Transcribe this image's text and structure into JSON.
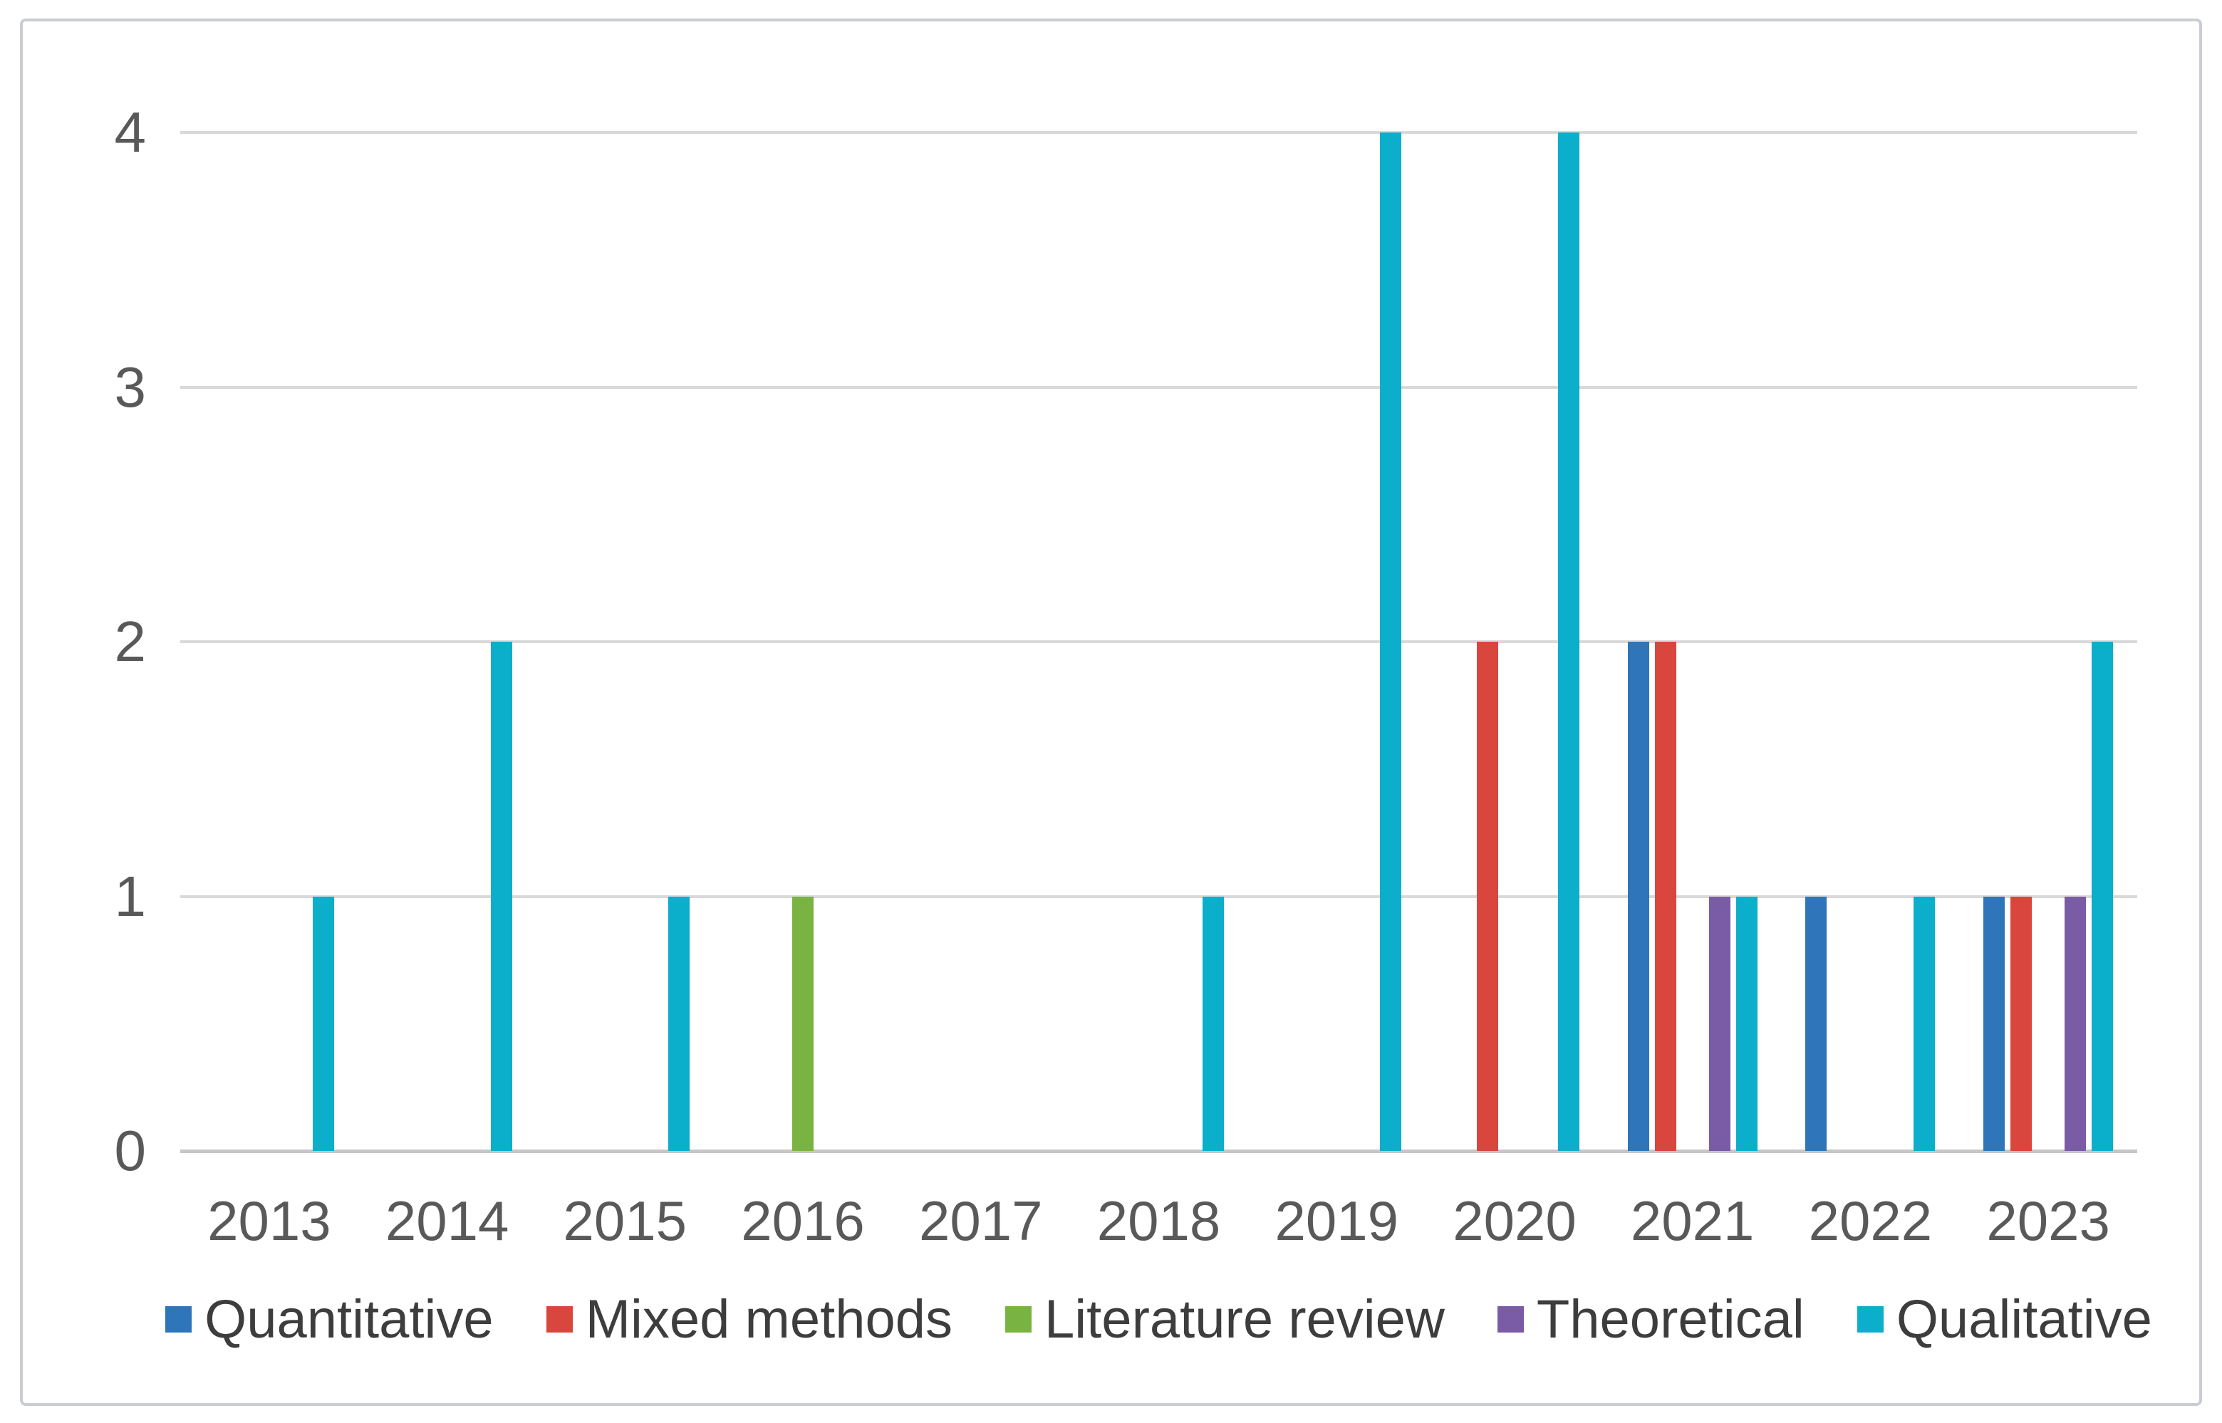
{
  "figure": {
    "background_color": "#ffffff",
    "border_color": "#c9cdd2"
  },
  "chart_data": {
    "type": "bar",
    "title": "",
    "xlabel": "",
    "ylabel": "",
    "categories": [
      "2013",
      "2014",
      "2015",
      "2016",
      "2017",
      "2018",
      "2019",
      "2020",
      "2021",
      "2022",
      "2023"
    ],
    "series": [
      {
        "name": "Quantitative",
        "color": "#2e76b9",
        "values": [
          0,
          0,
          0,
          0,
          0,
          0,
          0,
          0,
          2,
          1,
          1
        ]
      },
      {
        "name": "Mixed methods",
        "color": "#d9463e",
        "values": [
          0,
          0,
          0,
          0,
          0,
          0,
          0,
          2,
          2,
          0,
          1
        ]
      },
      {
        "name": "Literature review",
        "color": "#79b442",
        "values": [
          0,
          0,
          0,
          1,
          0,
          0,
          0,
          0,
          0,
          0,
          0
        ]
      },
      {
        "name": "Theoretical",
        "color": "#7a5ba5",
        "values": [
          0,
          0,
          0,
          0,
          0,
          0,
          0,
          0,
          1,
          0,
          1
        ]
      },
      {
        "name": "Qualitative",
        "color": "#0baecb",
        "values": [
          1,
          2,
          1,
          0,
          0,
          1,
          4,
          4,
          1,
          1,
          2
        ]
      }
    ],
    "ylim": [
      0,
      4
    ],
    "yticks": [
      "0",
      "1",
      "2",
      "3",
      "4"
    ],
    "grid": true,
    "legend_position": "bottom",
    "gridline_color": "#d9d9d9",
    "axis_line_color": "#c6c6c6",
    "tick_label_color": "#595959",
    "legend_text_color": "#3d3d3d"
  }
}
